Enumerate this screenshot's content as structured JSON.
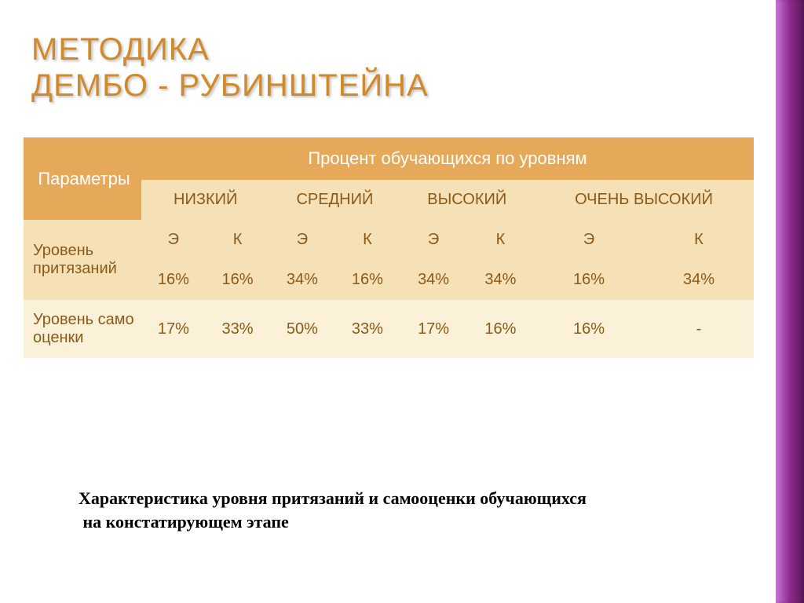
{
  "title": {
    "line1": "МЕТОДИКА",
    "line2": "ДЕМБО - РУБИНШТЕЙНА",
    "color": "#d18a2a",
    "fontsize": 40
  },
  "table": {
    "header_bg_dark": "#e6a95a",
    "header_bg_light": "#f6e0b5",
    "row_bg_dark": "#f6e0b5",
    "row_bg_light": "#fbf0d8",
    "text_color": "#8a5a1a",
    "header_text_color": "#ffffff",
    "params_label": "Параметры",
    "percent_label": "Процент обучающихся по уровням",
    "levels": [
      "НИЗКИЙ",
      "СРЕДНИЙ",
      "ВЫСОКИЙ",
      "ОЧЕНЬ ВЫСОКИЙ"
    ],
    "group_labels": [
      "Э",
      "К",
      "Э",
      "К",
      "Э",
      "К",
      "Э",
      "К"
    ],
    "rows": [
      {
        "label": "Уровень притязаний",
        "values": [
          "16%",
          "16%",
          "34%",
          "16%",
          "34%",
          "34%",
          "16%",
          "34%"
        ]
      },
      {
        "label": "Уровень само оценки",
        "values": [
          "17%",
          "33%",
          "50%",
          "33%",
          "17%",
          "16%",
          "16%",
          "-"
        ]
      }
    ]
  },
  "caption": {
    "text1": "Характеристика уровня притязаний и самооценки обучающихся",
    "text2": "на констатирующем этапе",
    "fontsize": 22,
    "color": "#000000"
  },
  "accent": {
    "gradient_from": "#c678d6",
    "gradient_mid": "#8e2a8e",
    "gradient_to": "#5a1a5a",
    "width": 36
  }
}
